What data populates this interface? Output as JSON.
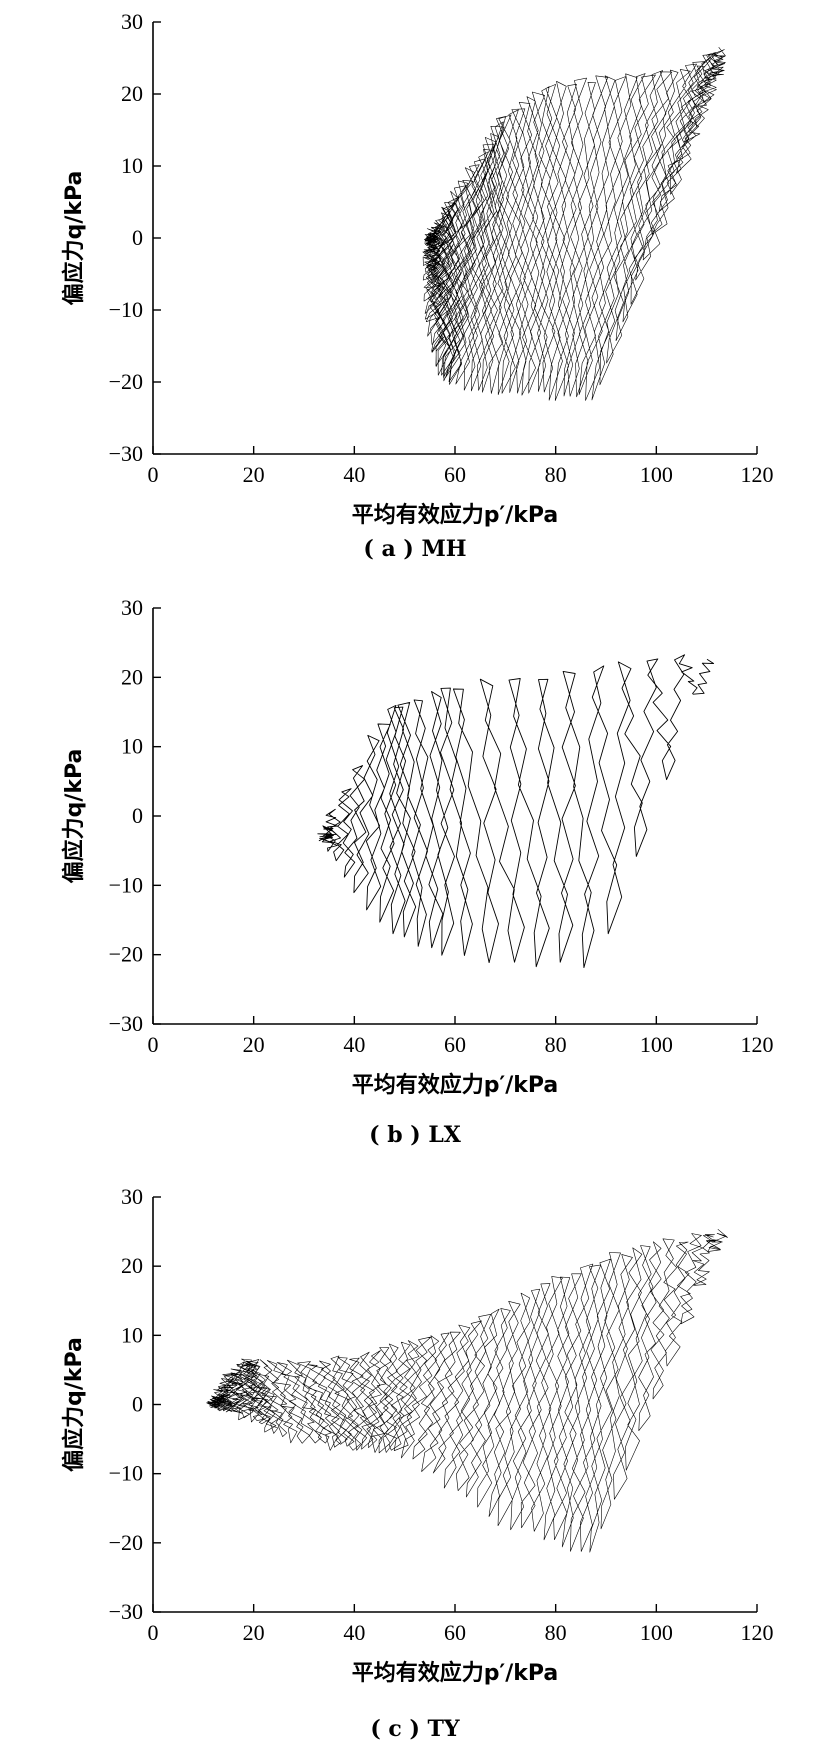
{
  "chart_data": [
    {
      "type": "line",
      "caption": "( a ) MH",
      "xlabel": "平均有效应力p′/kPa",
      "ylabel": "偏应力q/kPa",
      "xlim": [
        0,
        120
      ],
      "ylim": [
        -30,
        30
      ],
      "xticks": [
        "0",
        "20",
        "40",
        "60",
        "80",
        "100",
        "120"
      ],
      "yticks": [
        "30",
        "20",
        "10",
        "0",
        "−10",
        "−20",
        "−30"
      ],
      "grid": false,
      "series": [
        {
          "description_of_path": "dense cyclic stress path; each cycle oscillates between upper and lower envelope",
          "upper_envelope": {
            "x": [
              113,
              108,
              95,
              80,
              70,
              66,
              60,
              57,
              55
            ],
            "y": [
              26,
              24,
              22.5,
              21.5,
              17,
              12,
              6,
              2,
              0
            ]
          },
          "lower_envelope": {
            "x": [
              113,
              100,
              89,
              80,
              70,
              60,
              57,
              55,
              55
            ],
            "y": [
              24,
              0,
              -22,
              -22,
              -21.5,
              -20.5,
              -18,
              -10,
              0
            ]
          },
          "cycles": 60,
          "oscillations_per_cycle": 10
        }
      ]
    },
    {
      "type": "line",
      "caption": "( b ) LX",
      "xlabel": "平均有效应力p′/kPa",
      "ylabel": "偏应力q/kPa",
      "xlim": [
        0,
        120
      ],
      "ylim": [
        -30,
        30
      ],
      "xticks": [
        "0",
        "20",
        "40",
        "60",
        "80",
        "100",
        "120"
      ],
      "yticks": [
        "30",
        "20",
        "10",
        "0",
        "−10",
        "−20",
        "−30"
      ],
      "grid": false,
      "series": [
        {
          "description_of_path": "cyclic stress path with individually visible loops moving left",
          "upper_envelope": {
            "x": [
              111,
              100,
              90,
              80,
              70,
              60,
              56,
              50,
              48,
              45,
              40,
              35,
              34
            ],
            "y": [
              23,
              22.5,
              21.5,
              20.5,
              19.5,
              18.5,
              17.5,
              16.5,
              16,
              13,
              6,
              0,
              -3
            ]
          },
          "lower_envelope": {
            "x": [
              111,
              100,
              89,
              80,
              70,
              60,
              55,
              50,
              45,
              40,
              36,
              34
            ],
            "y": [
              23,
              0,
              -22,
              -21.5,
              -21,
              -20,
              -19,
              -17.5,
              -14,
              -10,
              -5,
              -3
            ]
          },
          "cycles": 22,
          "oscillations_per_cycle": 8
        }
      ]
    },
    {
      "type": "line",
      "caption": "( c ) TY",
      "xlabel": "平均有效应力p′/kPa",
      "ylabel": "偏应力q/kPa",
      "xlim": [
        0,
        120
      ],
      "ylim": [
        -30,
        30
      ],
      "xticks": [
        "0",
        "20",
        "40",
        "60",
        "80",
        "100",
        "120"
      ],
      "yticks": [
        "30",
        "20",
        "10",
        "0",
        "−10",
        "−20",
        "−30"
      ],
      "grid": false,
      "series": [
        {
          "description_of_path": "dense cyclic stress path contracting toward low mean stress",
          "upper_envelope": {
            "x": [
              113,
              100,
              90,
              80,
              70,
              60,
              50,
              40,
              30,
              20,
              18,
              15,
              12
            ],
            "y": [
              25,
              23,
              21,
              18,
              14,
              10.5,
              8.5,
              7,
              6,
              6,
              6,
              4,
              0
            ]
          },
          "lower_envelope": {
            "x": [
              113,
              100,
              88,
              80,
              70,
              60,
              50,
              45,
              40,
              35,
              25,
              20,
              15,
              12
            ],
            "y": [
              25,
              0,
              -22,
              -20,
              -17,
              -12,
              -7,
              -6.5,
              -6.5,
              -6,
              -4.5,
              -2,
              -1,
              0
            ]
          },
          "cycles": 60,
          "oscillations_per_cycle": 10
        }
      ]
    }
  ]
}
